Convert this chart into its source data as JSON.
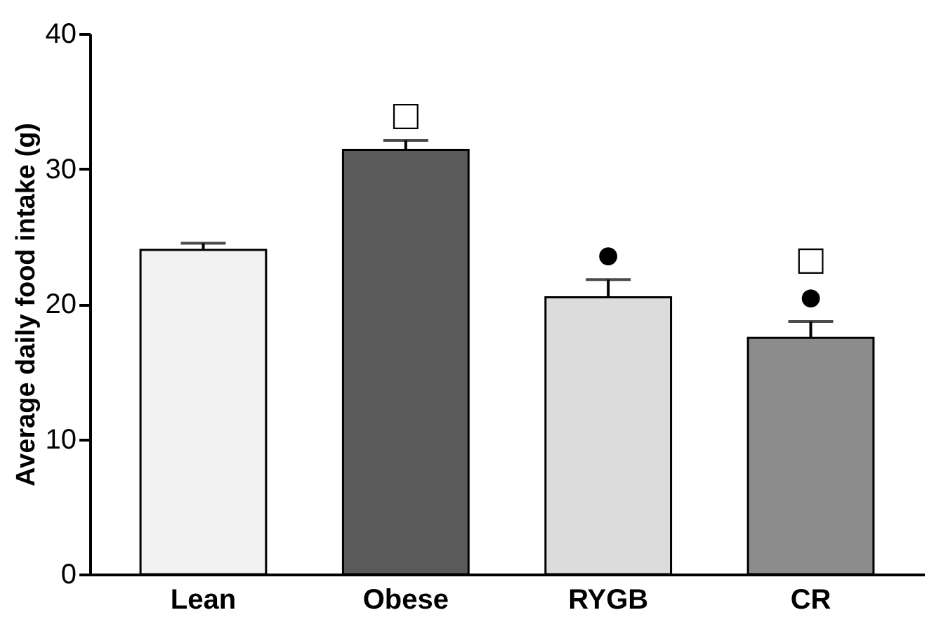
{
  "chart_data": {
    "type": "bar",
    "ylabel": "Average daily food intake (g)",
    "categories": [
      "Lean",
      "Obese",
      "RYGB",
      "CR"
    ],
    "values": [
      24,
      31.4,
      20.5,
      17.5
    ],
    "colors": [
      "#f2f2f2",
      "#5a5a5a",
      "#dcdcdc",
      "#8c8c8c"
    ],
    "errors": [
      [
        24,
        24.5
      ],
      [
        31.4,
        32.1
      ],
      [
        20.5,
        21.8
      ],
      [
        17.5,
        18.7
      ]
    ],
    "ylim": [
      0,
      40
    ],
    "yticks": [
      0,
      10,
      20,
      30,
      40
    ],
    "grid": false,
    "annotations": [
      {
        "text": "□",
        "x": "Obese",
        "y": 32.1
      },
      {
        "text": "●",
        "x": "RYGB",
        "y": 21.8
      },
      {
        "text": "□",
        "x": "CR",
        "y": 18.7
      },
      {
        "text": "●",
        "x": "CR",
        "y": 18.7
      }
    ]
  }
}
